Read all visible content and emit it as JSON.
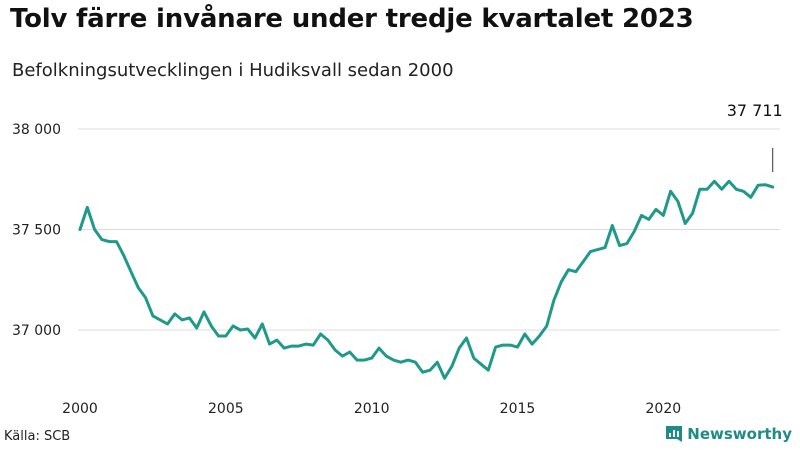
{
  "header": {
    "title": "Tolv färre invånare under tredje kvartalet 2023",
    "subtitle": "Befolkningsutvecklingen i Hudiksvall sedan 2000"
  },
  "footer": {
    "source": "Källa: SCB",
    "brand": "Newsworthy"
  },
  "colors": {
    "line": "#1f9a8a",
    "grid": "#dddddd",
    "brand": "#1f8a86"
  },
  "chart_data": {
    "type": "line",
    "title": "Tolv färre invånare under tredje kvartalet 2023",
    "subtitle": "Befolkningsutvecklingen i Hudiksvall sedan 2000",
    "xlabel": "",
    "ylabel": "",
    "xlim": [
      2000,
      2024
    ],
    "ylim": [
      36700,
      38000
    ],
    "grid": true,
    "y_ticks": [
      37000,
      37500,
      38000
    ],
    "y_tick_labels": [
      "37 000",
      "37 500",
      "38 000"
    ],
    "x_ticks": [
      2000,
      2005,
      2010,
      2015,
      2020
    ],
    "x_tick_labels": [
      "2000",
      "2005",
      "2010",
      "2015",
      "2020"
    ],
    "annotation": {
      "x": 2023.75,
      "y": 37711,
      "label": "37 711"
    },
    "series": [
      {
        "x": [
          2000.0,
          2000.25,
          2000.5,
          2000.75,
          2001.0,
          2001.25,
          2001.5,
          2001.75,
          2002.0,
          2002.25,
          2002.5,
          2002.75,
          2003.0,
          2003.25,
          2003.5,
          2003.75,
          2004.0,
          2004.25,
          2004.5,
          2004.75,
          2005.0,
          2005.25,
          2005.5,
          2005.75,
          2006.0,
          2006.25,
          2006.5,
          2006.75,
          2007.0,
          2007.25,
          2007.5,
          2007.75,
          2008.0,
          2008.25,
          2008.5,
          2008.75,
          2009.0,
          2009.25,
          2009.5,
          2009.75,
          2010.0,
          2010.25,
          2010.5,
          2010.75,
          2011.0,
          2011.25,
          2011.5,
          2011.75,
          2012.0,
          2012.25,
          2012.5,
          2012.75,
          2013.0,
          2013.25,
          2013.5,
          2013.75,
          2014.0,
          2014.25,
          2014.5,
          2014.75,
          2015.0,
          2015.25,
          2015.5,
          2015.75,
          2016.0,
          2016.25,
          2016.5,
          2016.75,
          2017.0,
          2017.25,
          2017.5,
          2017.75,
          2018.0,
          2018.25,
          2018.5,
          2018.75,
          2019.0,
          2019.25,
          2019.5,
          2019.75,
          2020.0,
          2020.25,
          2020.5,
          2020.75,
          2021.0,
          2021.25,
          2021.5,
          2021.75,
          2022.0,
          2022.25,
          2022.5,
          2022.75,
          2023.0,
          2023.25,
          2023.5,
          2023.75
        ],
        "values": [
          37500,
          37610,
          37500,
          37450,
          37440,
          37440,
          37370,
          37290,
          37210,
          37160,
          37070,
          37050,
          37030,
          37080,
          37050,
          37060,
          37010,
          37090,
          37020,
          36970,
          36970,
          37020,
          37000,
          37005,
          36960,
          37030,
          36930,
          36950,
          36910,
          36920,
          36920,
          36930,
          36925,
          36980,
          36950,
          36900,
          36870,
          36890,
          36850,
          36850,
          36860,
          36910,
          36870,
          36850,
          36840,
          36850,
          36840,
          36790,
          36800,
          36840,
          36760,
          36820,
          36910,
          36960,
          36860,
          36830,
          36800,
          36915,
          36925,
          36925,
          36915,
          36980,
          36930,
          36970,
          37020,
          37150,
          37240,
          37300,
          37290,
          37340,
          37390,
          37400,
          37410,
          37520,
          37420,
          37430,
          37490,
          37570,
          37550,
          37600,
          37570,
          37690,
          37640,
          37530,
          37580,
          37700,
          37700,
          37740,
          37700,
          37740,
          37700,
          37690,
          37660,
          37720,
          37723,
          37711
        ]
      }
    ]
  }
}
